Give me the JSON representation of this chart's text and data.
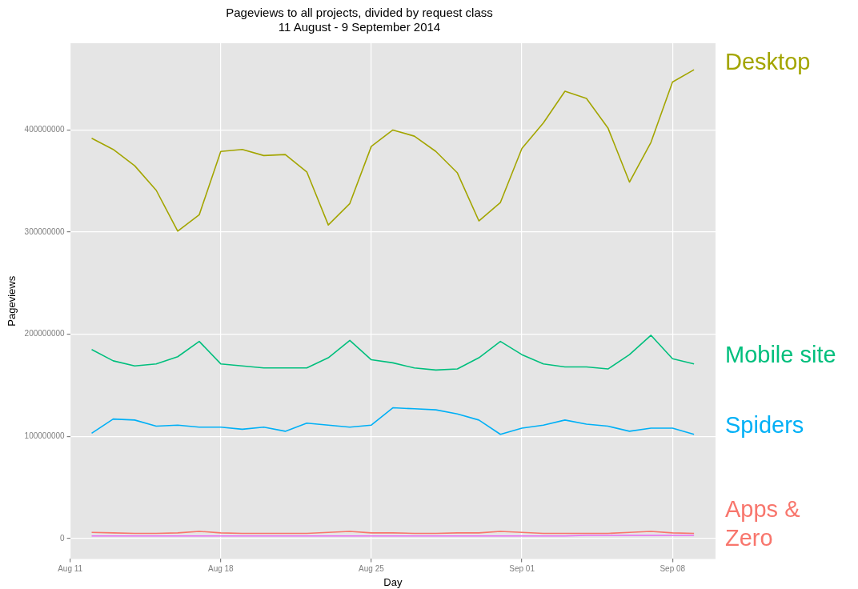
{
  "chart_data": {
    "type": "line",
    "title": "Pageviews to all projects, divided by request class",
    "subtitle": "11 August - 9 September 2014",
    "xlabel": "Day",
    "ylabel": "Pageviews",
    "x": [
      "2014-08-12",
      "2014-08-13",
      "2014-08-14",
      "2014-08-15",
      "2014-08-16",
      "2014-08-17",
      "2014-08-18",
      "2014-08-19",
      "2014-08-20",
      "2014-08-21",
      "2014-08-22",
      "2014-08-23",
      "2014-08-24",
      "2014-08-25",
      "2014-08-26",
      "2014-08-27",
      "2014-08-28",
      "2014-08-29",
      "2014-08-30",
      "2014-08-31",
      "2014-09-01",
      "2014-09-02",
      "2014-09-03",
      "2014-09-04",
      "2014-09-05",
      "2014-09-06",
      "2014-09-07",
      "2014-09-08",
      "2014-09-09"
    ],
    "series": [
      {
        "name": "Desktop",
        "color": "#a3a500",
        "values": [
          392000000,
          381000000,
          365000000,
          341000000,
          301000000,
          317000000,
          379000000,
          381000000,
          375000000,
          376000000,
          359000000,
          307000000,
          328000000,
          384000000,
          400000000,
          394000000,
          379000000,
          358000000,
          311000000,
          329000000,
          382000000,
          407000000,
          438000000,
          431000000,
          402000000,
          349000000,
          388000000,
          447000000,
          459000000
        ]
      },
      {
        "name": "Mobile site",
        "color": "#00bf7d",
        "values": [
          185000000,
          174000000,
          169000000,
          171000000,
          178000000,
          193000000,
          171000000,
          169000000,
          167000000,
          167000000,
          167000000,
          177000000,
          194000000,
          175000000,
          172000000,
          167000000,
          165000000,
          166000000,
          177000000,
          193000000,
          180000000,
          171000000,
          168000000,
          168000000,
          166000000,
          180000000,
          199000000,
          176000000,
          171000000
        ]
      },
      {
        "name": "Spiders",
        "color": "#00b0f6",
        "values": [
          103000000,
          117000000,
          116000000,
          110000000,
          111000000,
          109000000,
          109000000,
          107000000,
          109000000,
          105000000,
          113000000,
          111000000,
          109000000,
          111000000,
          128000000,
          127000000,
          126000000,
          122000000,
          116000000,
          102000000,
          108000000,
          111000000,
          116000000,
          112000000,
          110000000,
          105000000,
          108000000,
          108000000,
          102000000
        ]
      },
      {
        "name": "Apps & Zero",
        "color": "#f8766d",
        "values": [
          6000000,
          5500000,
          5000000,
          5000000,
          5500000,
          7000000,
          5500000,
          5000000,
          5000000,
          5000000,
          5000000,
          6000000,
          7000000,
          5500000,
          5500000,
          5000000,
          5000000,
          5500000,
          5500000,
          7000000,
          6000000,
          5000000,
          5000000,
          5000000,
          5000000,
          6000000,
          7000000,
          5500000,
          5000000
        ]
      },
      {
        "color": "#e76bf3",
        "values": [
          2500000,
          2500000,
          2500000,
          2500000,
          2500000,
          2500000,
          2500000,
          2500000,
          2500000,
          2500000,
          2500000,
          2500000,
          2500000,
          2500000,
          2500000,
          2500000,
          2500000,
          2500000,
          2500000,
          2500000,
          2500000,
          2500000,
          2500000,
          3000000,
          3000000,
          3000000,
          3000000,
          3000000,
          3000000
        ]
      }
    ],
    "xlim": [
      "2014-08-11",
      "2014-09-10"
    ],
    "xticks": [
      {
        "value": "2014-08-11",
        "label": "Aug 11"
      },
      {
        "value": "2014-08-18",
        "label": "Aug 18"
      },
      {
        "value": "2014-08-25",
        "label": "Aug 25"
      },
      {
        "value": "2014-09-01",
        "label": "Sep 01"
      },
      {
        "value": "2014-09-08",
        "label": "Sep 08"
      }
    ],
    "ylim": [
      -20000000,
      485000000
    ],
    "yticks": [
      0,
      100000000,
      200000000,
      300000000,
      400000000
    ],
    "grid": true,
    "legend": "right",
    "marker": "none",
    "line_style": "solid"
  }
}
